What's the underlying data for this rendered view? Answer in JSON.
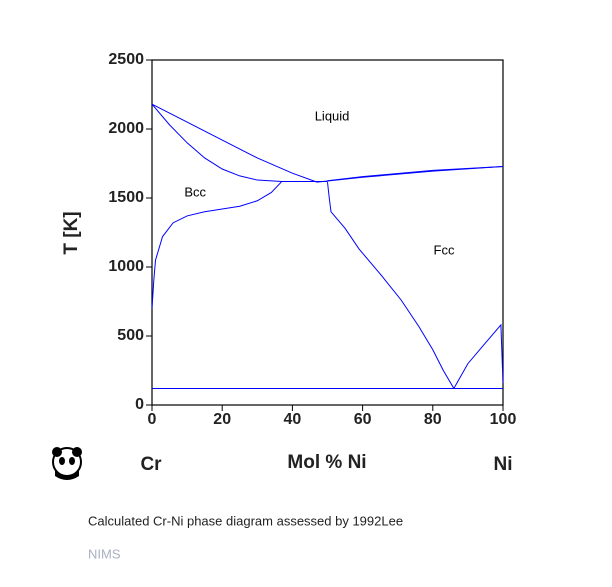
{
  "chart_data": {
    "type": "line",
    "ylabel": "T [K]",
    "xlabel": "Mol % Ni",
    "left_element": "Cr",
    "right_element": "Ni",
    "caption": "Calculated Cr-Ni phase diagram assessed by 1992Lee",
    "source": "NIMS",
    "xlim": [
      0,
      100
    ],
    "xticks": [
      0,
      20,
      40,
      60,
      80,
      100
    ],
    "ylim": [
      0,
      2500
    ],
    "yticks": [
      0,
      500,
      1000,
      1500,
      2000,
      2500
    ],
    "annotations": [
      {
        "text": "Liquid",
        "x": 51.3,
        "y": 2087
      },
      {
        "text": "Bcc",
        "x": 12.3,
        "y": 1536
      },
      {
        "text": "Fcc",
        "x": 83.2,
        "y": 1116
      }
    ],
    "series": [
      {
        "color": "#0000ff",
        "x": [
          0,
          10,
          20,
          30,
          40,
          47
        ],
        "values": [
          2180,
          2050,
          1920,
          1790,
          1680,
          1615
        ]
      },
      {
        "color": "#0000ff",
        "x": [
          0,
          5,
          10,
          15,
          20,
          25,
          30,
          37
        ],
        "values": [
          2180,
          2030,
          1900,
          1790,
          1710,
          1660,
          1630,
          1620
        ]
      },
      {
        "color": "#0000ff",
        "x": [
          37,
          50
        ],
        "values": [
          1620,
          1620
        ]
      },
      {
        "color": "#0000ff",
        "x": [
          47,
          60,
          80,
          100
        ],
        "values": [
          1615,
          1650,
          1695,
          1728
        ]
      },
      {
        "color": "#0000ff",
        "x": [
          50,
          60,
          80,
          100
        ],
        "values": [
          1625,
          1655,
          1700,
          1728
        ]
      },
      {
        "color": "#0000ff",
        "x": [
          0,
          0.5,
          1,
          3,
          6,
          10,
          15,
          20,
          25,
          30,
          34,
          37
        ],
        "values": [
          700,
          900,
          1050,
          1220,
          1320,
          1370,
          1400,
          1420,
          1440,
          1480,
          1540,
          1620
        ]
      },
      {
        "color": "#0000ff",
        "x": [
          50,
          50.5,
          51,
          55,
          59,
          65,
          71,
          76,
          80,
          83,
          86
        ],
        "values": [
          1615,
          1500,
          1400,
          1280,
          1130,
          950,
          760,
          570,
          400,
          250,
          120
        ]
      },
      {
        "color": "#0000ff",
        "x": [
          86,
          90,
          95,
          99.4,
          100
        ],
        "values": [
          120,
          300,
          450,
          580,
          160
        ]
      },
      {
        "color": "#0000ff",
        "x": [
          0,
          100
        ],
        "values": [
          120,
          120
        ]
      }
    ]
  }
}
